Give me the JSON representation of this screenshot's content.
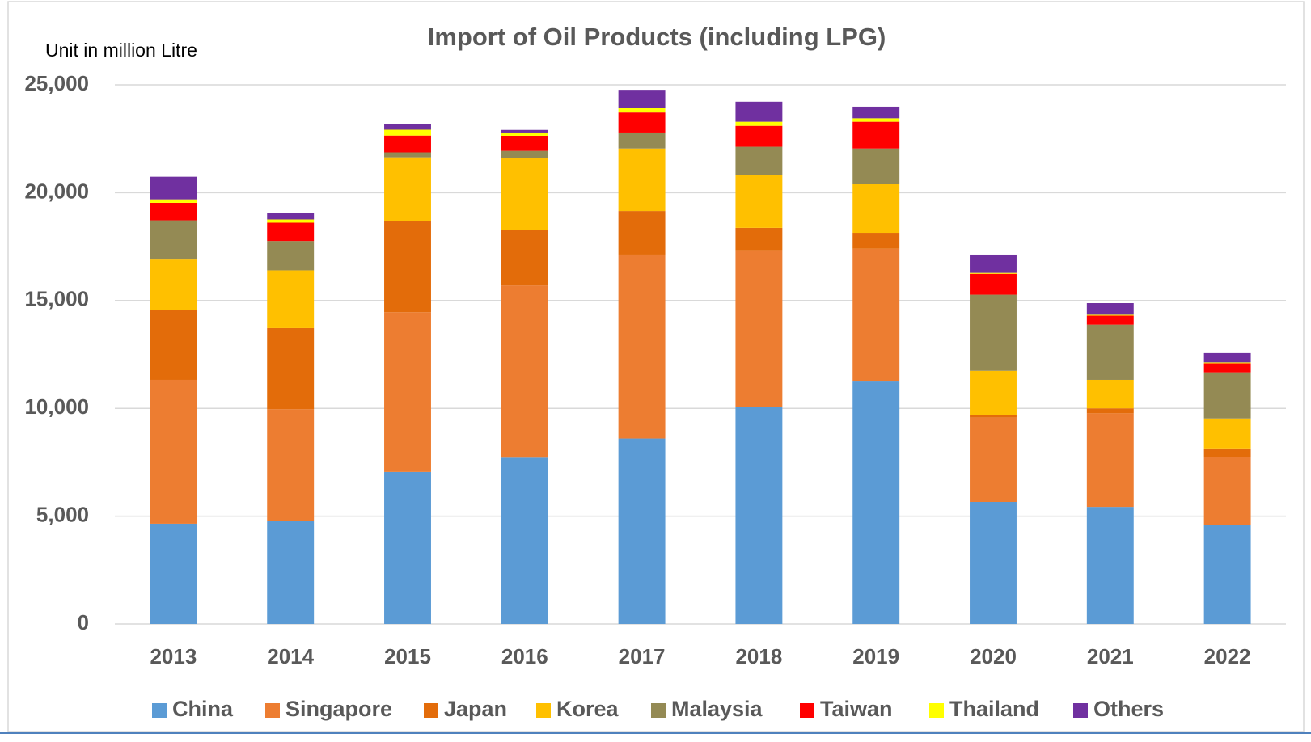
{
  "chart_data": {
    "type": "stacked_bar",
    "title": "Import of Oil Products (including LPG)",
    "unit_label": "Unit in million Litre",
    "categories": [
      "2013",
      "2014",
      "2015",
      "2016",
      "2017",
      "2018",
      "2019",
      "2020",
      "2021",
      "2022"
    ],
    "series": [
      {
        "name": "China",
        "color": "#5b9bd5",
        "values": [
          4650,
          4770,
          7050,
          7710,
          8600,
          10080,
          11280,
          5660,
          5430,
          4610
        ]
      },
      {
        "name": "Singapore",
        "color": "#ed7d31",
        "values": [
          6670,
          5190,
          7410,
          7990,
          8530,
          7250,
          6120,
          3910,
          4340,
          3140
        ]
      },
      {
        "name": "Japan",
        "color": "#e36c0a",
        "values": [
          3260,
          3760,
          4230,
          2560,
          2020,
          1040,
          740,
          120,
          230,
          390
        ]
      },
      {
        "name": "Korea",
        "color": "#ffc000",
        "values": [
          2320,
          2680,
          2950,
          3330,
          2900,
          2440,
          2250,
          2050,
          1320,
          1390
        ]
      },
      {
        "name": "Malaysia",
        "color": "#948a54",
        "values": [
          1820,
          1360,
          230,
          350,
          740,
          1320,
          1660,
          3530,
          2560,
          2140
        ]
      },
      {
        "name": "Taiwan",
        "color": "#ff0000",
        "values": [
          810,
          850,
          780,
          700,
          930,
          970,
          1240,
          970,
          420,
          420
        ]
      },
      {
        "name": "Thailand",
        "color": "#ffff00",
        "values": [
          160,
          150,
          270,
          150,
          230,
          190,
          160,
          40,
          40,
          40
        ]
      },
      {
        "name": "Others",
        "color": "#7030a0",
        "values": [
          1050,
          310,
          270,
          120,
          820,
          930,
          540,
          850,
          540,
          430
        ]
      }
    ],
    "ylim": [
      0,
      25000
    ],
    "yticks": [
      0,
      {
        "value": 5000,
        "label": "5,000"
      },
      {
        "value": 10000,
        "label": "10,000"
      },
      {
        "value": 15000,
        "label": "15,000"
      },
      {
        "value": 20000,
        "label": "20,000"
      },
      {
        "value": 25000,
        "label": "25,000"
      }
    ],
    "grid": true,
    "legend": "bottom"
  }
}
